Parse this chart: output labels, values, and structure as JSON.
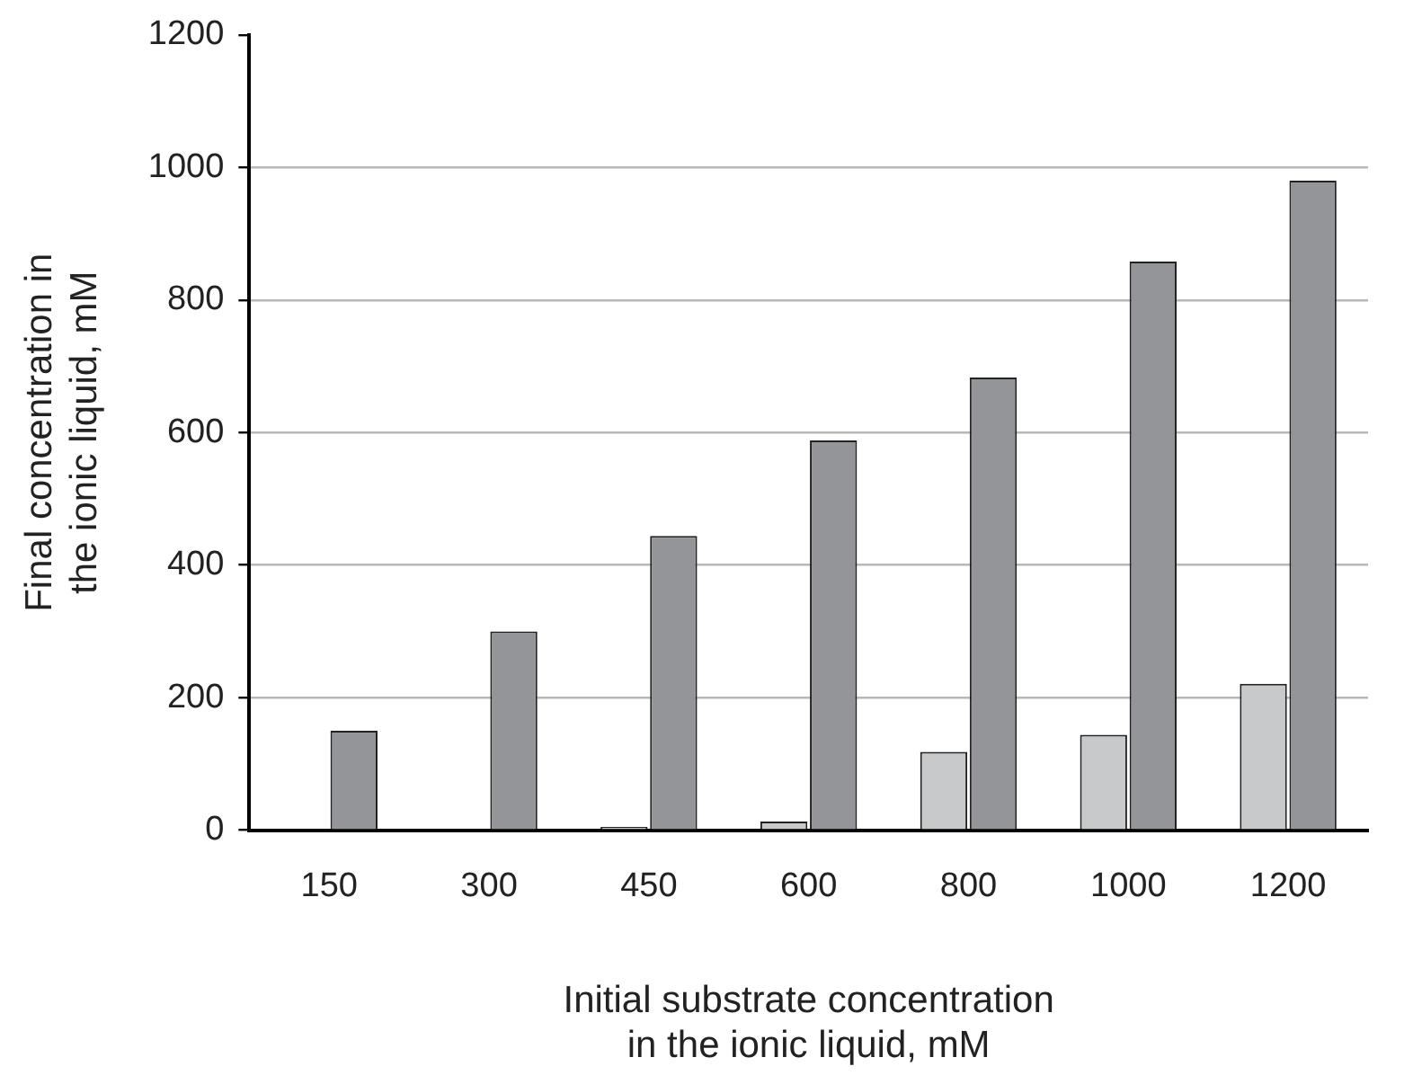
{
  "chart_data": {
    "type": "bar",
    "xlabel": "Initial substrate concentration\nin the ionic liquid, mM",
    "ylabel": "Final concentration in\nthe ionic liquid, mM",
    "categories": [
      "150",
      "300",
      "450",
      "600",
      "800",
      "1000",
      "1200"
    ],
    "series": [
      {
        "color": "#c8c9cb",
        "values": [
          0,
          null,
          5,
          13,
          118,
          144,
          221
        ]
      },
      {
        "color": "#939598",
        "values": [
          150,
          300,
          444,
          588,
          683,
          858,
          980
        ]
      }
    ],
    "ylim": [
      0,
      1200
    ],
    "yticks": [
      0,
      200,
      400,
      600,
      800,
      1000,
      1200
    ],
    "grid": "y",
    "legend": false
  }
}
